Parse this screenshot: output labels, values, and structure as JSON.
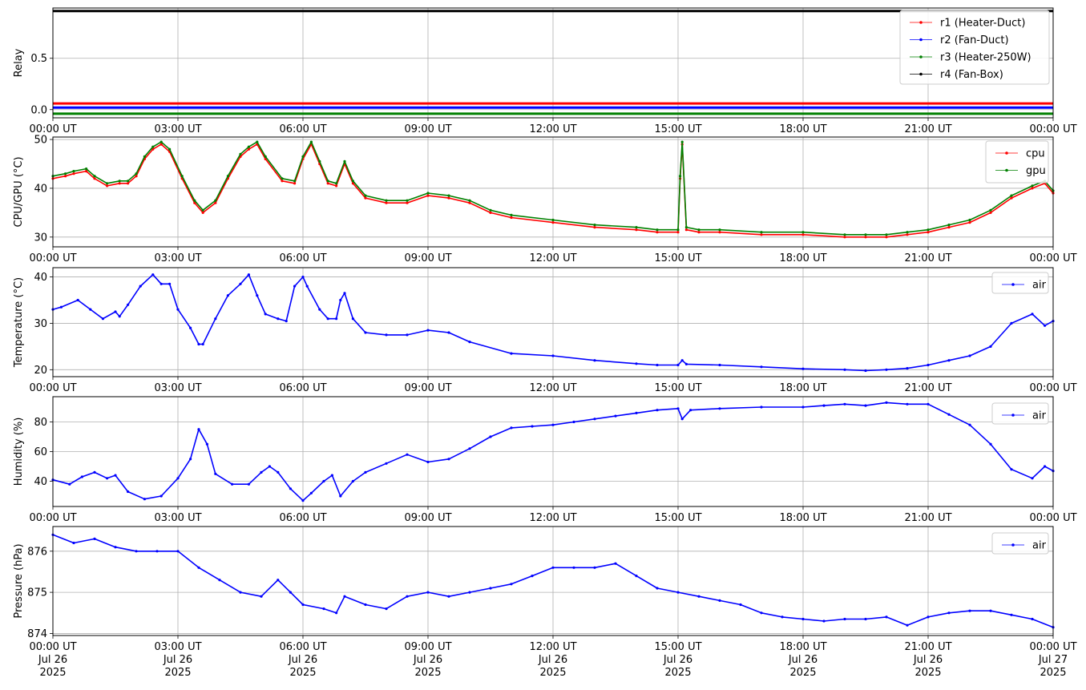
{
  "x_tick_labels": [
    "00:00 UT",
    "03:00 UT",
    "06:00 UT",
    "09:00 UT",
    "12:00 UT",
    "15:00 UT",
    "18:00 UT",
    "21:00 UT",
    "00:00 UT"
  ],
  "date_line1": [
    "Jul 26",
    "Jul 26",
    "Jul 26",
    "Jul 26",
    "Jul 26",
    "Jul 26",
    "Jul 26",
    "Jul 26",
    "Jul 27"
  ],
  "date_line2": [
    "2025",
    "2025",
    "2025",
    "2025",
    "2025",
    "2025",
    "2025",
    "2025",
    "2025"
  ],
  "chart_data": [
    {
      "type": "line",
      "ylabel": "Relay",
      "xlim": [
        "2025-07-26 00:00",
        "2025-07-27 00:00"
      ],
      "ylim": [
        -0.08,
        0.99
      ],
      "yticks": [
        0.0,
        0.5
      ],
      "ytick_labels": [
        "0.0",
        "0.5"
      ],
      "grid": true,
      "legend": "top-right",
      "series": [
        {
          "name": "r1 (Heater-Duct)",
          "color": "#ff0000",
          "x": [
            0,
            24
          ],
          "y": [
            0.06,
            0.06
          ]
        },
        {
          "name": "r2 (Fan-Duct)",
          "color": "#0000ff",
          "x": [
            0,
            24
          ],
          "y": [
            0.02,
            0.02
          ]
        },
        {
          "name": "r3 (Heater-250W)",
          "color": "#008000",
          "x": [
            0,
            24
          ],
          "y": [
            -0.04,
            -0.04
          ]
        },
        {
          "name": "r4 (Fan-Box)",
          "color": "#000000",
          "x": [
            0,
            24
          ],
          "y": [
            0.96,
            0.96
          ]
        }
      ]
    },
    {
      "type": "line",
      "ylabel": "CPU/GPU (°C)",
      "xlim": [
        "2025-07-26 00:00",
        "2025-07-27 00:00"
      ],
      "ylim": [
        28,
        50.5
      ],
      "yticks": [
        30,
        40,
        50
      ],
      "ytick_labels": [
        "30",
        "40",
        "50"
      ],
      "grid": true,
      "legend": "top-right",
      "series": [
        {
          "name": "cpu",
          "color": "#ff0000",
          "x": [
            0,
            0.3,
            0.5,
            0.8,
            1.0,
            1.3,
            1.6,
            1.8,
            2.0,
            2.2,
            2.4,
            2.6,
            2.8,
            3.1,
            3.4,
            3.6,
            3.9,
            4.2,
            4.5,
            4.7,
            4.9,
            5.1,
            5.5,
            5.8,
            6.0,
            6.2,
            6.4,
            6.6,
            6.8,
            7.0,
            7.2,
            7.5,
            8.0,
            8.5,
            9.0,
            9.5,
            10.0,
            10.5,
            11.0,
            12.0,
            13.0,
            14.0,
            14.5,
            15.0,
            15.05,
            15.1,
            15.2,
            15.5,
            16.0,
            17.0,
            18.0,
            19.0,
            19.5,
            20.0,
            20.5,
            21.0,
            21.5,
            22.0,
            22.5,
            23.0,
            23.5,
            23.8,
            24.0
          ],
          "y": [
            42,
            42.5,
            43,
            43.5,
            42,
            40.5,
            41,
            41,
            42.5,
            46,
            48,
            49,
            47.5,
            42,
            37,
            35,
            37,
            42,
            46.5,
            48,
            49,
            46,
            41.5,
            41,
            46,
            49,
            45,
            41,
            40.5,
            45,
            41,
            38,
            37,
            37,
            38.5,
            38,
            37,
            35,
            34,
            33,
            32,
            31.5,
            31,
            31,
            42,
            49,
            31.5,
            31,
            31,
            30.5,
            30.5,
            30,
            30,
            30,
            30.5,
            31,
            32,
            33,
            35,
            38,
            40,
            41,
            39
          ]
        },
        {
          "name": "gpu",
          "color": "#008000",
          "x": [
            0,
            0.3,
            0.5,
            0.8,
            1.0,
            1.3,
            1.6,
            1.8,
            2.0,
            2.2,
            2.4,
            2.6,
            2.8,
            3.1,
            3.4,
            3.6,
            3.9,
            4.2,
            4.5,
            4.7,
            4.9,
            5.1,
            5.5,
            5.8,
            6.0,
            6.2,
            6.4,
            6.6,
            6.8,
            7.0,
            7.2,
            7.5,
            8.0,
            8.5,
            9.0,
            9.5,
            10.0,
            10.5,
            11.0,
            12.0,
            13.0,
            14.0,
            14.5,
            15.0,
            15.05,
            15.1,
            15.2,
            15.5,
            16.0,
            17.0,
            18.0,
            19.0,
            19.5,
            20.0,
            20.5,
            21.0,
            21.5,
            22.0,
            22.5,
            23.0,
            23.5,
            23.8,
            24.0
          ],
          "y": [
            42.5,
            43,
            43.5,
            44,
            42.5,
            41,
            41.5,
            41.5,
            43,
            46.5,
            48.5,
            49.5,
            48,
            42.5,
            37.5,
            35.5,
            37.5,
            42.5,
            47,
            48.5,
            49.5,
            46.5,
            42,
            41.5,
            46.5,
            49.5,
            45.5,
            41.5,
            41,
            45.5,
            41.5,
            38.5,
            37.5,
            37.5,
            39,
            38.5,
            37.5,
            35.5,
            34.5,
            33.5,
            32.5,
            32,
            31.5,
            31.5,
            42.5,
            49.5,
            32,
            31.5,
            31.5,
            31,
            31,
            30.5,
            30.5,
            30.5,
            31,
            31.5,
            32.5,
            33.5,
            35.5,
            38.5,
            40.5,
            41.5,
            39.5
          ]
        }
      ]
    },
    {
      "type": "line",
      "ylabel": "Temperature (°C)",
      "xlim": [
        "2025-07-26 00:00",
        "2025-07-27 00:00"
      ],
      "ylim": [
        18.5,
        42
      ],
      "yticks": [
        20,
        30,
        40
      ],
      "ytick_labels": [
        "20",
        "30",
        "40"
      ],
      "grid": true,
      "legend": "top-right",
      "series": [
        {
          "name": "air",
          "color": "#0000ff",
          "x": [
            0,
            0.2,
            0.6,
            0.9,
            1.2,
            1.5,
            1.6,
            1.8,
            2.1,
            2.4,
            2.6,
            2.8,
            3.0,
            3.3,
            3.5,
            3.6,
            3.9,
            4.2,
            4.5,
            4.7,
            4.9,
            5.1,
            5.4,
            5.6,
            5.8,
            6.0,
            6.1,
            6.4,
            6.6,
            6.8,
            6.9,
            7.0,
            7.2,
            7.5,
            8.0,
            8.5,
            9.0,
            9.5,
            10.0,
            11.0,
            12.0,
            13.0,
            14.0,
            14.5,
            15.0,
            15.1,
            15.2,
            16.0,
            17.0,
            18.0,
            19.0,
            19.5,
            20.0,
            20.5,
            21.0,
            21.5,
            22.0,
            22.5,
            23.0,
            23.5,
            23.8,
            24.0
          ],
          "y": [
            33,
            33.5,
            35,
            33,
            31,
            32.5,
            31.5,
            34,
            38,
            40.5,
            38.5,
            38.5,
            33,
            29,
            25.5,
            25.5,
            31,
            36,
            38.5,
            40.5,
            36,
            32,
            31,
            30.5,
            38,
            40,
            38,
            33,
            31,
            31,
            35,
            36.5,
            31,
            28,
            27.5,
            27.5,
            28.5,
            28,
            26,
            23.5,
            23,
            22,
            21.3,
            21,
            21,
            22,
            21.2,
            21,
            20.6,
            20.2,
            20,
            19.8,
            20,
            20.3,
            21,
            22,
            23,
            25,
            30,
            32,
            29.5,
            30.5
          ]
        }
      ]
    },
    {
      "type": "line",
      "ylabel": "Humidity (%)",
      "xlim": [
        "2025-07-26 00:00",
        "2025-07-27 00:00"
      ],
      "ylim": [
        23,
        97
      ],
      "yticks": [
        40,
        60,
        80
      ],
      "ytick_labels": [
        "40",
        "60",
        "80"
      ],
      "grid": true,
      "legend": "top-right",
      "series": [
        {
          "name": "air",
          "color": "#0000ff",
          "x": [
            0,
            0.4,
            0.7,
            1.0,
            1.3,
            1.5,
            1.8,
            2.2,
            2.6,
            3.0,
            3.3,
            3.5,
            3.7,
            3.9,
            4.3,
            4.7,
            5.0,
            5.2,
            5.4,
            5.7,
            6.0,
            6.2,
            6.5,
            6.7,
            6.9,
            7.2,
            7.5,
            8.0,
            8.5,
            9.0,
            9.5,
            10.0,
            10.5,
            11.0,
            11.5,
            12.0,
            12.5,
            13.0,
            13.5,
            14.0,
            14.5,
            15.0,
            15.1,
            15.3,
            16.0,
            17.0,
            18.0,
            18.5,
            19.0,
            19.5,
            20.0,
            20.5,
            21.0,
            21.5,
            22.0,
            22.5,
            23.0,
            23.5,
            23.8,
            24.0
          ],
          "y": [
            41,
            38,
            43,
            46,
            42,
            44,
            33,
            28,
            30,
            42,
            55,
            75,
            65,
            45,
            38,
            38,
            46,
            50,
            46,
            35,
            27,
            32,
            40,
            44,
            30,
            40,
            46,
            52,
            58,
            53,
            55,
            62,
            70,
            76,
            77,
            78,
            80,
            82,
            84,
            86,
            88,
            89,
            82,
            88,
            89,
            90,
            90,
            91,
            92,
            91,
            93,
            92,
            92,
            85,
            78,
            65,
            48,
            42,
            50,
            47
          ]
        }
      ]
    },
    {
      "type": "line",
      "ylabel": "Pressure (hPa)",
      "xlim": [
        "2025-07-26 00:00",
        "2025-07-27 00:00"
      ],
      "ylim": [
        873.95,
        876.6
      ],
      "yticks": [
        874,
        875,
        876
      ],
      "ytick_labels": [
        "874",
        "875",
        "876"
      ],
      "grid": true,
      "legend": "top-right",
      "series": [
        {
          "name": "air",
          "color": "#0000ff",
          "x": [
            0,
            0.5,
            1.0,
            1.5,
            2.0,
            2.5,
            3.0,
            3.5,
            4.0,
            4.5,
            5.0,
            5.4,
            5.7,
            6.0,
            6.5,
            6.8,
            7.0,
            7.5,
            8.0,
            8.5,
            9.0,
            9.5,
            10.0,
            10.5,
            11.0,
            11.5,
            12.0,
            12.5,
            13.0,
            13.5,
            14.0,
            14.5,
            15.0,
            15.5,
            16.0,
            16.5,
            17.0,
            17.5,
            18.0,
            18.5,
            19.0,
            19.5,
            20.0,
            20.5,
            21.0,
            21.5,
            22.0,
            22.5,
            23.0,
            23.5,
            24.0
          ],
          "y": [
            876.4,
            876.2,
            876.3,
            876.1,
            876.0,
            876.0,
            876.0,
            875.6,
            875.3,
            875.0,
            874.9,
            875.3,
            875.0,
            874.7,
            874.6,
            874.5,
            874.9,
            874.7,
            874.6,
            874.9,
            875.0,
            874.9,
            875.0,
            875.1,
            875.2,
            875.4,
            875.6,
            875.6,
            875.6,
            875.7,
            875.4,
            875.1,
            875.0,
            874.9,
            874.8,
            874.7,
            874.5,
            874.4,
            874.35,
            874.3,
            874.35,
            874.35,
            874.4,
            874.2,
            874.4,
            874.5,
            874.55,
            874.55,
            874.45,
            874.35,
            874.15
          ]
        }
      ]
    }
  ]
}
